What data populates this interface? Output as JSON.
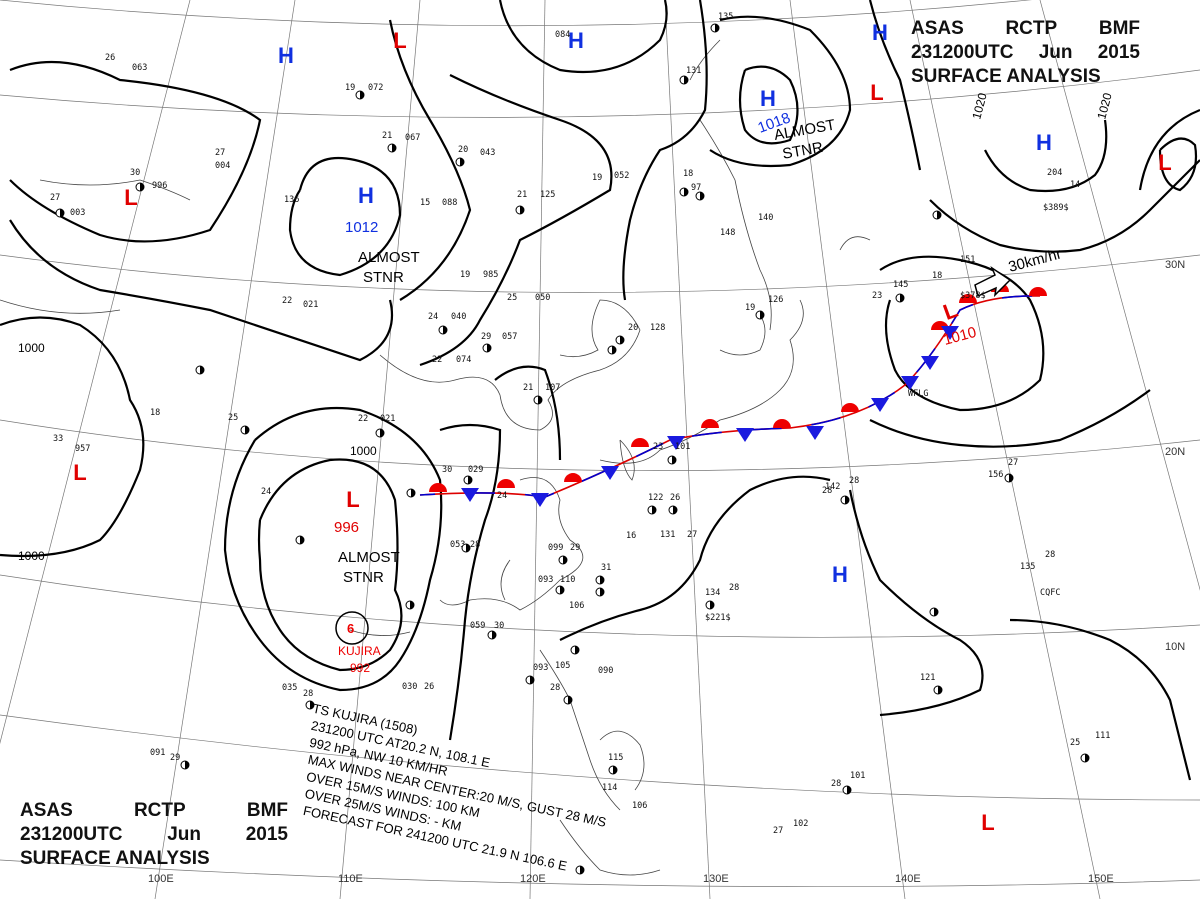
{
  "header": {
    "line1": [
      "ASAS",
      "RCTP",
      "BMF"
    ],
    "line2": [
      "231200UTC",
      "Jun",
      "2015"
    ],
    "line3": "SURFACE ANALYSIS"
  },
  "pressure_centers": [
    {
      "type": "H",
      "value": ""
    },
    {
      "type": "L",
      "value": ""
    },
    {
      "type": "H",
      "value": ""
    },
    {
      "type": "H",
      "value": ""
    },
    {
      "type": "H",
      "value": "1018"
    },
    {
      "type": "L",
      "value": ""
    },
    {
      "type": "H",
      "value": ""
    },
    {
      "type": "L",
      "value": ""
    },
    {
      "type": "H",
      "value": "1012"
    },
    {
      "type": "L",
      "value": ""
    },
    {
      "type": "L",
      "value": ""
    },
    {
      "type": "L",
      "value": "996"
    },
    {
      "type": "L",
      "value": "1010"
    },
    {
      "type": "H",
      "value": ""
    },
    {
      "type": "L",
      "value": ""
    }
  ],
  "isobar_labels": [
    "1000",
    "1000",
    "1000",
    "1020",
    "1020"
  ],
  "annotations": {
    "almost_stnr": [
      "ALMOST",
      "STNR"
    ],
    "front_speed": "30km/hr"
  },
  "typhoon": {
    "name_label": "KUJIRA",
    "pressure_label": "992",
    "info": [
      "TS  KUJIRA  (1508)",
      "231200 UTC  AT20.2 N, 108.1 E",
      "992 hPa, NW  10 KM/HR",
      "MAX WINDS NEAR CENTER:20 M/S, GUST 28 M/S",
      "OVER 15M/S WINDS: 100 KM",
      "OVER 25M/S WINDS: - KM",
      "FORECAST FOR 241200 UTC 21.9 N   106.6 E"
    ]
  },
  "grid_labels": {
    "lon": [
      "100E",
      "110E",
      "120E",
      "130E",
      "140E",
      "150E"
    ],
    "lat": [
      "30N",
      "20N",
      "10N"
    ]
  },
  "station_values": [
    "26",
    "063",
    "30",
    "996",
    "27",
    "003",
    "27",
    "004",
    "19",
    "072",
    "21",
    "067",
    "15",
    "088",
    "20",
    "043",
    "21",
    "125",
    "19",
    "052",
    "136",
    "19",
    "985",
    "22",
    "021",
    "24",
    "040",
    "29",
    "057",
    "25",
    "050",
    "20",
    "128",
    "23",
    "145",
    "18",
    "151",
    "22",
    "074",
    "21",
    "107",
    "19",
    "126",
    "140",
    "148",
    "18",
    "33",
    "957",
    "25",
    "22",
    "021",
    "24",
    "30",
    "029",
    "23",
    "101",
    "28",
    "24",
    "122",
    "26",
    "053",
    "28",
    "099",
    "29",
    "16",
    "131",
    "27",
    "142",
    "28",
    "156",
    "27",
    "135",
    "28",
    "093",
    "110",
    "106",
    "31",
    "134",
    "28",
    "059",
    "30",
    "030",
    "26",
    "035",
    "28",
    "091",
    "29",
    "093",
    "105",
    "28",
    "090",
    "115",
    "114",
    "106",
    "27",
    "102",
    "28",
    "101",
    "25",
    "111",
    "121",
    "084",
    "135",
    "131",
    "18",
    "97",
    "204",
    "14",
    "$389$",
    "$221$",
    "$378$",
    "CQFC",
    "WFLG"
  ]
}
